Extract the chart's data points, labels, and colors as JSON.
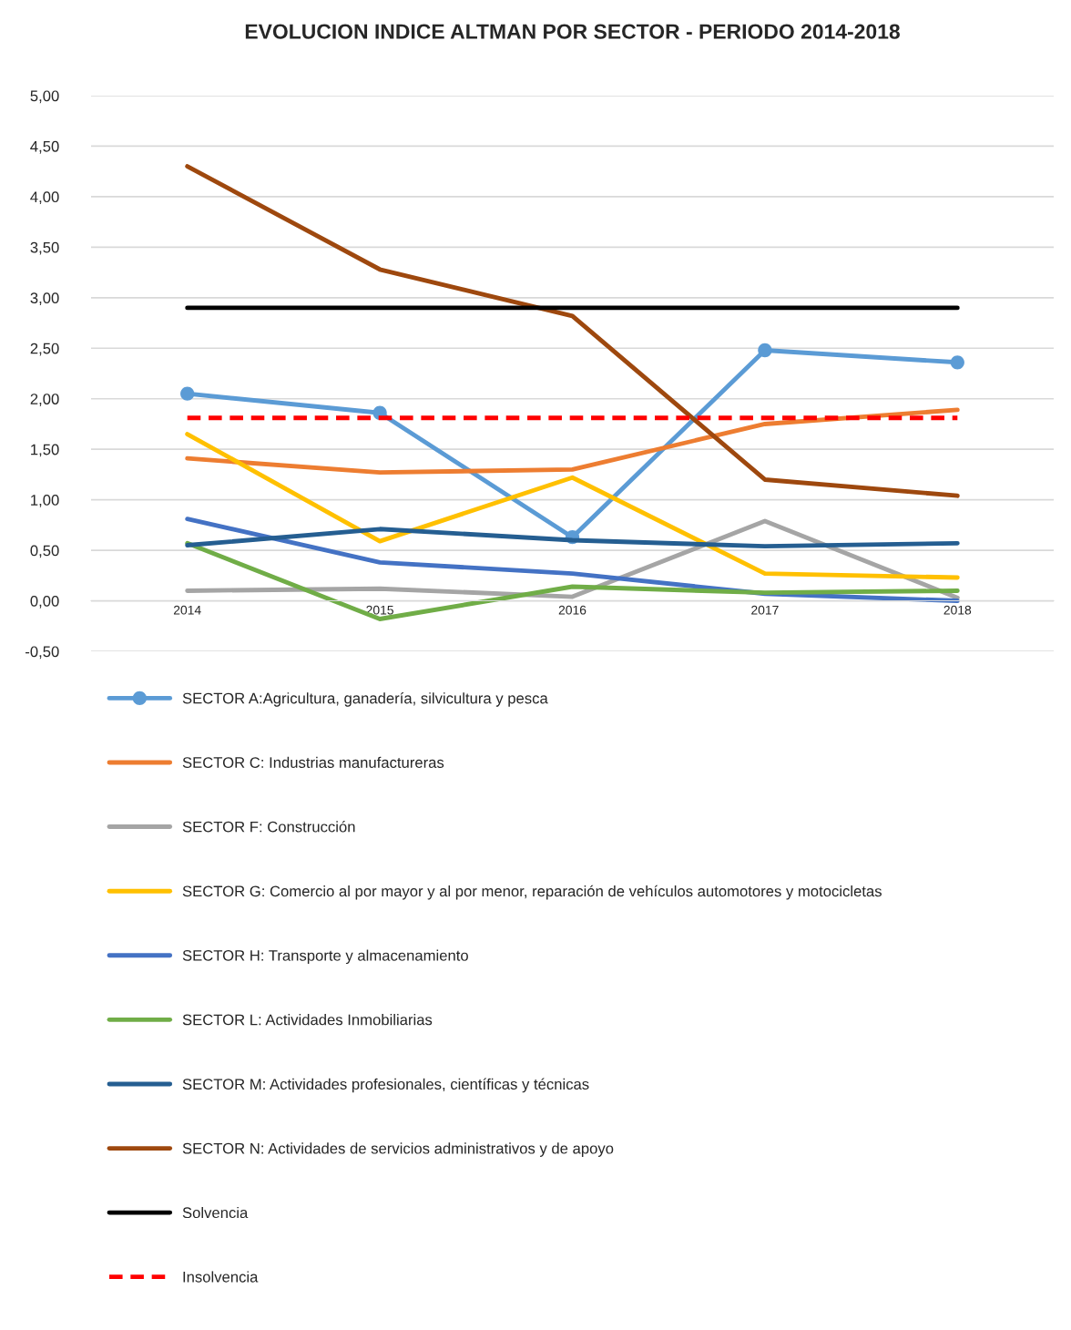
{
  "chart_data": {
    "type": "line",
    "title": "EVOLUCION INDICE ALTMAN POR SECTOR - PERIODO 2014-2018",
    "categories": [
      "2014",
      "2015",
      "2016",
      "2017",
      "2018"
    ],
    "series": [
      {
        "name": "SECTOR A:Agricultura, ganadería, silvicultura y pesca",
        "color": "#5b9bd5",
        "marker": "circle",
        "values": [
          2.05,
          1.86,
          0.63,
          2.48,
          2.36
        ]
      },
      {
        "name": "SECTOR C: Industrias manufactureras",
        "color": "#ed7d31",
        "values": [
          1.41,
          1.27,
          1.3,
          1.75,
          1.89
        ]
      },
      {
        "name": "SECTOR F: Construcción",
        "color": "#a5a5a5",
        "values": [
          0.1,
          0.12,
          0.04,
          0.79,
          0.03
        ]
      },
      {
        "name": "SECTOR G: Comercio al por mayor y al por menor, reparación de vehículos automotores y motocicletas",
        "color": "#ffc000",
        "values": [
          1.65,
          0.59,
          1.22,
          0.27,
          0.23
        ]
      },
      {
        "name": "SECTOR H: Transporte y almacenamiento",
        "color": "#4472c4",
        "values": [
          0.81,
          0.38,
          0.27,
          0.07,
          0.0
        ]
      },
      {
        "name": "SECTOR L: Actividades Inmobiliarias",
        "color": "#70ad47",
        "values": [
          0.57,
          -0.18,
          0.14,
          0.08,
          0.1
        ]
      },
      {
        "name": "SECTOR M: Actividades profesionales, científicas y técnicas",
        "color": "#255e91",
        "values": [
          0.55,
          0.71,
          0.6,
          0.54,
          0.57
        ]
      },
      {
        "name": "SECTOR N: Actividades de servicios administrativos y de apoyo",
        "color": "#9e480e",
        "values": [
          4.3,
          3.28,
          2.82,
          1.2,
          1.04
        ]
      },
      {
        "name": "Solvencia",
        "color": "#000000",
        "line_style": "solid",
        "values": [
          2.9,
          2.9,
          2.9,
          2.9,
          2.9
        ]
      },
      {
        "name": "Insolvencia",
        "color": "#ff0000",
        "line_style": "dashed",
        "values": [
          1.81,
          1.81,
          1.81,
          1.81,
          1.81
        ]
      }
    ],
    "ylim": [
      -0.5,
      5.0
    ],
    "yticks": [
      {
        "value": -0.5,
        "label": "-0,50"
      },
      {
        "value": 0,
        "label": "0,00"
      },
      {
        "value": 0.5,
        "label": "0,50"
      },
      {
        "value": 1.0,
        "label": "1,00"
      },
      {
        "value": 1.5,
        "label": "1,50"
      },
      {
        "value": 2.0,
        "label": "2,00"
      },
      {
        "value": 2.5,
        "label": "2,50"
      },
      {
        "value": 3.0,
        "label": "3,00"
      },
      {
        "value": 3.5,
        "label": "3,50"
      },
      {
        "value": 4.0,
        "label": "4,00"
      },
      {
        "value": 4.5,
        "label": "4,50"
      },
      {
        "value": 5.0,
        "label": "5,00"
      }
    ],
    "grid": "y",
    "legend": "bottom"
  }
}
